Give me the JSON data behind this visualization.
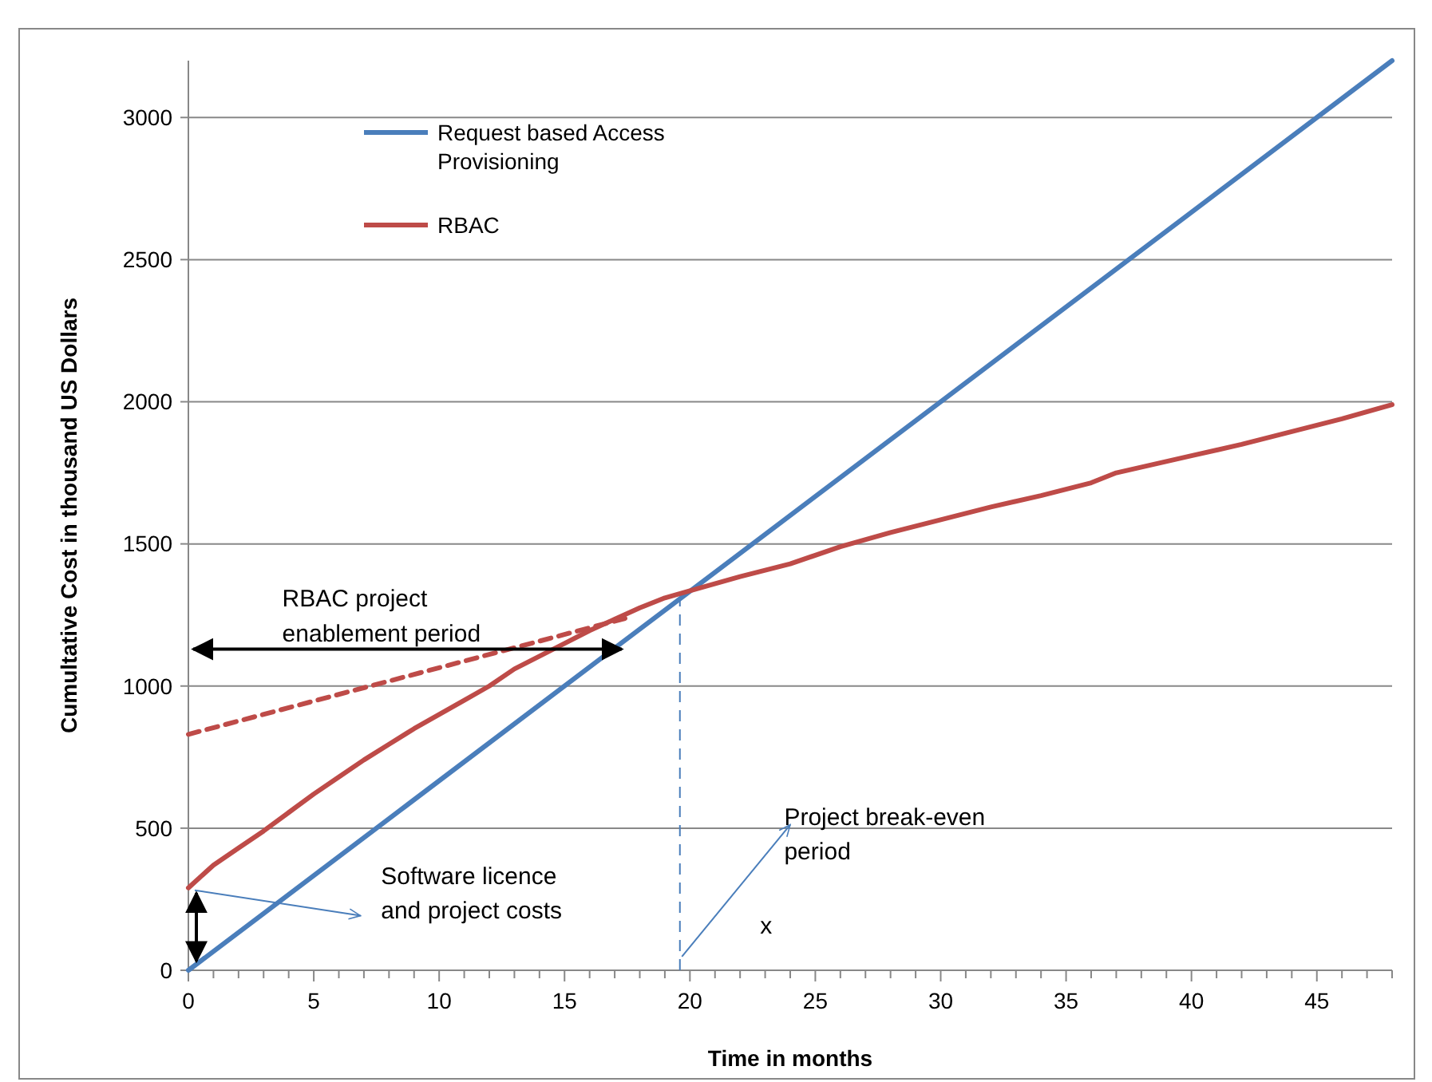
{
  "chart_data": {
    "type": "line",
    "xlabel": "Time in months",
    "ylabel": "Cumultative Cost in thousand US Dollars",
    "xlim": [
      0,
      48
    ],
    "ylim": [
      0,
      3200
    ],
    "xticks": [
      0,
      {
        "value": 1,
        "label": null
      },
      {
        "value": 2,
        "label": null
      },
      {
        "value": 3,
        "label": null
      },
      {
        "value": 4,
        "label": null
      },
      5,
      {
        "value": 6,
        "label": null
      },
      {
        "value": 7,
        "label": null
      },
      {
        "value": 8,
        "label": null
      },
      {
        "value": 9,
        "label": null
      },
      10,
      {
        "value": 11,
        "label": null
      },
      {
        "value": 12,
        "label": null
      },
      {
        "value": 13,
        "label": null
      },
      {
        "value": 14,
        "label": null
      },
      15,
      {
        "value": 16,
        "label": null
      },
      {
        "value": 17,
        "label": null
      },
      {
        "value": 18,
        "label": null
      },
      {
        "value": 19,
        "label": null
      },
      20,
      {
        "value": 21,
        "label": null
      },
      {
        "value": 22,
        "label": null
      },
      {
        "value": 23,
        "label": null
      },
      {
        "value": 24,
        "label": null
      },
      25,
      {
        "value": 26,
        "label": null
      },
      {
        "value": 27,
        "label": null
      },
      {
        "value": 28,
        "label": null
      },
      {
        "value": 29,
        "label": null
      },
      30,
      {
        "value": 31,
        "label": null
      },
      {
        "value": 32,
        "label": null
      },
      {
        "value": 33,
        "label": null
      },
      {
        "value": 34,
        "label": null
      },
      35,
      {
        "value": 36,
        "label": null
      },
      {
        "value": 37,
        "label": null
      },
      {
        "value": 38,
        "label": null
      },
      {
        "value": 39,
        "label": null
      },
      40,
      {
        "value": 41,
        "label": null
      },
      {
        "value": 42,
        "label": null
      },
      {
        "value": 43,
        "label": null
      },
      {
        "value": 44,
        "label": null
      },
      45,
      {
        "value": 46,
        "label": null
      },
      {
        "value": 47,
        "label": null
      },
      {
        "value": 48,
        "label": null
      }
    ],
    "yticks": [
      0,
      500,
      1000,
      1500,
      2000,
      2500,
      3000
    ],
    "grid": "y",
    "legend": "top left",
    "marker": "none",
    "series": [
      {
        "name": "Request based Access Provisioning",
        "color": "#4a7ebb",
        "x": [
          0,
          48
        ],
        "values": [
          0,
          3200
        ]
      },
      {
        "name": "RBAC",
        "color": "#be4b48",
        "x": [
          0,
          1,
          2,
          3,
          4,
          5,
          6,
          7,
          8,
          9,
          10,
          11,
          12,
          13,
          14,
          15,
          16,
          17,
          18,
          19,
          20,
          22,
          24,
          26,
          28,
          30,
          32,
          34,
          36,
          37,
          40,
          42,
          44,
          46,
          48
        ],
        "values": [
          290,
          370,
          430,
          490,
          555,
          620,
          680,
          740,
          795,
          850,
          900,
          950,
          1000,
          1060,
          1105,
          1150,
          1195,
          1235,
          1275,
          1310,
          1335,
          1385,
          1430,
          1490,
          1540,
          1585,
          1630,
          1670,
          1715,
          1750,
          1810,
          1850,
          1895,
          1940,
          1990
        ]
      },
      {
        "color": "#be4b48",
        "line_style": "dashed",
        "x": [
          0,
          17.5
        ],
        "values": [
          830,
          1240
        ]
      }
    ],
    "ref_lines": [
      {
        "axis": "x",
        "value": 19.6,
        "color": "#4a7ebb",
        "line_style": "dashed"
      }
    ],
    "annotations": [
      "RBAC project enablement period",
      "Software licence and project costs",
      "Project break-even period",
      "x"
    ]
  }
}
